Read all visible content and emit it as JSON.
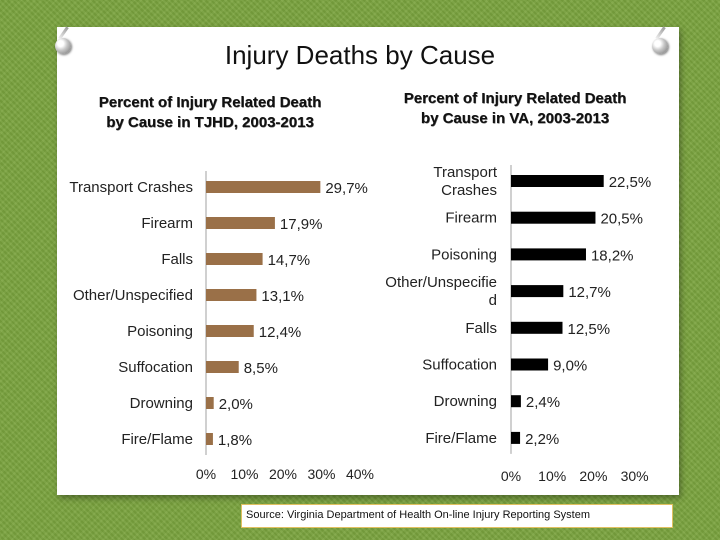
{
  "title": "Injury Deaths by Cause",
  "source": "Source: Virginia Department of Health On-line Injury Reporting System",
  "colors": {
    "tjhd_bar": "#9a7048",
    "va_bar": "#000000",
    "background": "#7aa33e"
  },
  "chart_data": [
    {
      "type": "bar",
      "orientation": "horizontal",
      "title": "Percent of Injury Related Death by Cause in TJHD, 2003-2013",
      "categories": [
        "Transport Crashes",
        "Firearm",
        "Falls",
        "Other/Unspecified",
        "Poisoning",
        "Suffocation",
        "Drowning",
        "Fire/Flame"
      ],
      "values": [
        29.7,
        17.9,
        14.7,
        13.1,
        12.4,
        8.5,
        2.0,
        1.8
      ],
      "value_labels": [
        "29,7%",
        "17,9%",
        "14,7%",
        "13,1%",
        "12,4%",
        "8,5%",
        "2,0%",
        "1,8%"
      ],
      "xlim": [
        0,
        40
      ],
      "xticks": [
        "0%",
        "10%",
        "20%",
        "30%",
        "40%"
      ],
      "color": "#9a7048",
      "grid": false
    },
    {
      "type": "bar",
      "orientation": "horizontal",
      "title": "Percent of Injury Related Death by Cause in VA, 2003-2013",
      "categories": [
        "Transport Crashes",
        "Firearm",
        "Poisoning",
        "Other/Unspecifie d",
        "Falls",
        "Suffocation",
        "Drowning",
        "Fire/Flame"
      ],
      "values": [
        22.5,
        20.5,
        18.2,
        12.7,
        12.5,
        9.0,
        2.4,
        2.2
      ],
      "value_labels": [
        "22,5%",
        "20,5%",
        "18,2%",
        "12,7%",
        "12,5%",
        "9,0%",
        "2,4%",
        "2,2%"
      ],
      "xlim": [
        0,
        30
      ],
      "xticks": [
        "0%",
        "10%",
        "20%",
        "30%"
      ],
      "color": "#000000",
      "grid": false
    }
  ]
}
